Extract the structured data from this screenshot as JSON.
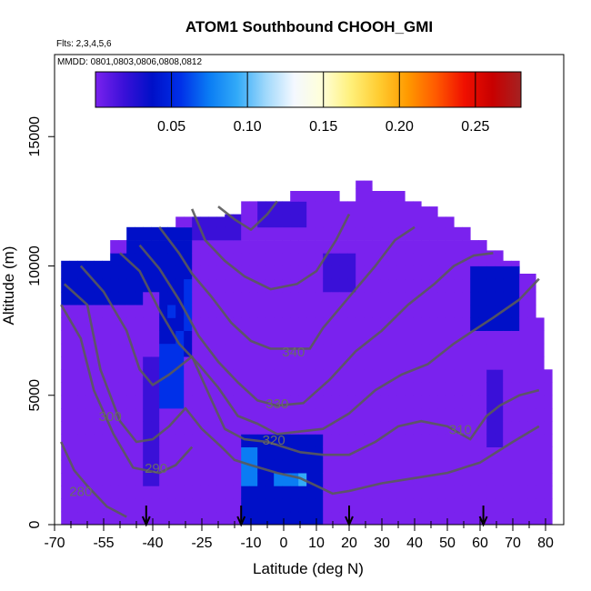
{
  "chart_data": {
    "type": "heatmap",
    "title": "ATOM1 Southbound CHOOH_GMI",
    "subtitle_flights": "Flts: 2,3,4,5,6",
    "subtitle_dates": "MMDD: 0801,0803,0806,0808,0812",
    "xlabel": "Latitude (deg N)",
    "ylabel": "Altitude (m)",
    "xlim": [
      -70,
      80
    ],
    "ylim": [
      0,
      16500
    ],
    "x_tick_labels": [
      "-70",
      "-55",
      "-40",
      "-25",
      "-10",
      "0",
      "10",
      "20",
      "30",
      "40",
      "50",
      "60",
      "70",
      "80"
    ],
    "x_tick_values": [
      -70,
      -55,
      -40,
      -25,
      -10,
      0,
      10,
      20,
      30,
      40,
      50,
      60,
      70,
      80
    ],
    "x_minor_ticks": [
      -65,
      -60,
      -50,
      -45,
      -35,
      -30,
      -20,
      -15,
      -5,
      5,
      15,
      25,
      35,
      45,
      55,
      65,
      75
    ],
    "y_tick_labels": [
      "0",
      "5000",
      "10000",
      "15000"
    ],
    "y_tick_values": [
      0,
      5000,
      10000,
      15000
    ],
    "colorbar": {
      "range": [
        0,
        0.28
      ],
      "tick_labels": [
        "0.05",
        "0.10",
        "0.15",
        "0.20",
        "0.25"
      ],
      "tick_values": [
        0.05,
        0.1,
        0.15,
        0.2,
        0.25
      ],
      "colors": [
        "#7a22ee",
        "#3a10d8",
        "#0010c8",
        "#0030e8",
        "#0a7cf4",
        "#32aaf8",
        "#9fd8fb",
        "#f4f8ff",
        "#ffffd8",
        "#fff07a",
        "#ffcc30",
        "#ff9a00",
        "#ff5a00",
        "#f01000",
        "#c80000",
        "#a52222"
      ]
    },
    "column_top_altitudes": [
      {
        "lat": -68,
        "top": 10200
      },
      {
        "lat": -62,
        "top": 10200
      },
      {
        "lat": -55,
        "top": 11000
      },
      {
        "lat": -50,
        "top": 11500
      },
      {
        "lat": -45,
        "top": 11500
      },
      {
        "lat": -40,
        "top": 11500
      },
      {
        "lat": -35,
        "top": 11900
      },
      {
        "lat": -25,
        "top": 11900
      },
      {
        "lat": -20,
        "top": 12000
      },
      {
        "lat": -15,
        "top": 12500
      },
      {
        "lat": -5,
        "top": 12500
      },
      {
        "lat": 0,
        "top": 12900
      },
      {
        "lat": 10,
        "top": 12900
      },
      {
        "lat": 15,
        "top": 12500
      },
      {
        "lat": 20,
        "top": 13300
      },
      {
        "lat": 25,
        "top": 12900
      },
      {
        "lat": 35,
        "top": 12500
      },
      {
        "lat": 40,
        "top": 12300
      },
      {
        "lat": 45,
        "top": 11900
      },
      {
        "lat": 50,
        "top": 11500
      },
      {
        "lat": 55,
        "top": 11000
      },
      {
        "lat": 60,
        "top": 10600
      },
      {
        "lat": 65,
        "top": 10200
      },
      {
        "lat": 70,
        "top": 9700
      },
      {
        "lat": 75,
        "top": 8000
      },
      {
        "lat": 78,
        "top": 6000
      }
    ],
    "background_value": 0.01,
    "patches": [
      {
        "lat0": -70,
        "lat1": -45,
        "alt0": 8500,
        "alt1": 10200,
        "value": 0.04
      },
      {
        "lat0": -50,
        "lat1": -30,
        "alt0": 9000,
        "alt1": 11500,
        "value": 0.04
      },
      {
        "lat0": -40,
        "lat1": -30,
        "alt0": 6500,
        "alt1": 9500,
        "value": 0.05
      },
      {
        "lat0": -38,
        "lat1": -32,
        "alt0": 4500,
        "alt1": 7000,
        "value": 0.06
      },
      {
        "lat0": -44,
        "lat1": -40,
        "alt0": 1500,
        "alt1": 6500,
        "value": 0.03
      },
      {
        "lat0": -30,
        "lat1": -15,
        "alt0": 11000,
        "alt1": 12000,
        "value": 0.03
      },
      {
        "lat0": -10,
        "lat1": 5,
        "alt0": 11500,
        "alt1": 12500,
        "value": 0.03
      },
      {
        "lat0": -15,
        "lat1": 10,
        "alt0": 0,
        "alt1": 3500,
        "value": 0.045
      },
      {
        "lat0": -14,
        "lat1": -8,
        "alt0": 1500,
        "alt1": 2700,
        "value": 0.08
      },
      {
        "lat0": -3,
        "lat1": 6,
        "alt0": 1500,
        "alt1": 2000,
        "value": 0.085
      },
      {
        "lat0": 10,
        "lat1": 20,
        "alt0": 9000,
        "alt1": 10500,
        "value": 0.03
      },
      {
        "lat0": 55,
        "lat1": 72,
        "alt0": 7500,
        "alt1": 10000,
        "value": 0.04
      },
      {
        "lat0": 60,
        "lat1": 66,
        "alt0": 3000,
        "alt1": 6000,
        "value": 0.03
      }
    ],
    "contours": [
      {
        "label": "280",
        "label_lat": -62,
        "label_alt": 1100,
        "points": [
          [
            -68,
            3200
          ],
          [
            -64,
            2100
          ],
          [
            -60,
            1500
          ],
          [
            -54,
            700
          ],
          [
            -48,
            300
          ]
        ]
      },
      {
        "label": "290",
        "label_lat": -39,
        "label_alt": 2000,
        "points": [
          [
            -68,
            8500
          ],
          [
            -62,
            7200
          ],
          [
            -58,
            5200
          ],
          [
            -52,
            3500
          ],
          [
            -46,
            2200
          ],
          [
            -38,
            2000
          ],
          [
            -33,
            2300
          ],
          [
            -28,
            3000
          ]
        ]
      },
      {
        "label": "300",
        "label_lat": -53,
        "label_alt": 4000,
        "points": [
          [
            -67,
            9300
          ],
          [
            -60,
            8500
          ],
          [
            -56,
            6000
          ],
          [
            -50,
            4000
          ],
          [
            -45,
            3200
          ],
          [
            -40,
            3300
          ],
          [
            -35,
            3800
          ],
          [
            -30,
            4500
          ],
          [
            -25,
            3700
          ],
          [
            -19,
            3000
          ],
          [
            -15,
            2500
          ],
          [
            -10,
            2300
          ],
          [
            -2,
            2000
          ],
          [
            5,
            1800
          ],
          [
            10,
            1500
          ],
          [
            15,
            1200
          ],
          [
            20,
            1300
          ],
          [
            30,
            1600
          ],
          [
            40,
            1800
          ],
          [
            50,
            2000
          ],
          [
            60,
            2400
          ],
          [
            70,
            3200
          ],
          [
            78,
            3800
          ]
        ]
      },
      {
        "label": "310",
        "label_lat": 54,
        "label_alt": 3500,
        "points": [
          [
            -62,
            10000
          ],
          [
            -55,
            9000
          ],
          [
            -48,
            7500
          ],
          [
            -44,
            6000
          ],
          [
            -40,
            5400
          ],
          [
            -35,
            5800
          ],
          [
            -28,
            6500
          ],
          [
            -22,
            4800
          ],
          [
            -18,
            3700
          ],
          [
            -12,
            3300
          ],
          [
            -5,
            3200
          ],
          [
            0,
            3000
          ],
          [
            5,
            2800
          ],
          [
            12,
            2700
          ],
          [
            20,
            2700
          ],
          [
            28,
            3200
          ],
          [
            35,
            3800
          ],
          [
            42,
            4000
          ],
          [
            50,
            3800
          ],
          [
            57,
            3300
          ],
          [
            62,
            4200
          ],
          [
            66,
            4600
          ],
          [
            72,
            5000
          ],
          [
            78,
            5200
          ]
        ]
      },
      {
        "label": "320",
        "label_lat": -3,
        "label_alt": 3100,
        "points": [
          [
            -50,
            10500
          ],
          [
            -44,
            9800
          ],
          [
            -38,
            8300
          ],
          [
            -32,
            7000
          ],
          [
            -26,
            6200
          ],
          [
            -20,
            5300
          ],
          [
            -14,
            4200
          ],
          [
            -8,
            3900
          ],
          [
            -2,
            3500
          ],
          [
            5,
            3600
          ],
          [
            12,
            3700
          ],
          [
            20,
            4300
          ],
          [
            28,
            5200
          ],
          [
            36,
            5800
          ],
          [
            44,
            6200
          ],
          [
            52,
            7000
          ],
          [
            58,
            7500
          ],
          [
            64,
            8000
          ],
          [
            72,
            8700
          ],
          [
            78,
            9500
          ]
        ]
      },
      {
        "label": "330",
        "label_lat": -2,
        "label_alt": 4500,
        "points": [
          [
            -44,
            10800
          ],
          [
            -38,
            9900
          ],
          [
            -32,
            8700
          ],
          [
            -26,
            7300
          ],
          [
            -20,
            6300
          ],
          [
            -14,
            5500
          ],
          [
            -8,
            4800
          ],
          [
            -2,
            4600
          ],
          [
            6,
            4700
          ],
          [
            14,
            5600
          ],
          [
            22,
            6700
          ],
          [
            30,
            7500
          ],
          [
            38,
            8500
          ],
          [
            46,
            9300
          ],
          [
            52,
            10000
          ],
          [
            58,
            10400
          ],
          [
            64,
            10500
          ]
        ]
      },
      {
        "label": "340",
        "label_lat": 3,
        "label_alt": 6500,
        "points": [
          [
            -38,
            11500
          ],
          [
            -32,
            10500
          ],
          [
            -28,
            9700
          ],
          [
            -22,
            8800
          ],
          [
            -16,
            7800
          ],
          [
            -10,
            7100
          ],
          [
            -4,
            6800
          ],
          [
            2,
            6800
          ],
          [
            8,
            6800
          ],
          [
            12,
            7600
          ],
          [
            20,
            8800
          ],
          [
            28,
            10000
          ],
          [
            34,
            11000
          ],
          [
            40,
            11500
          ]
        ]
      },
      {
        "label": "",
        "label_lat": 0,
        "label_alt": 0,
        "points": [
          [
            -28,
            12200
          ],
          [
            -24,
            11000
          ],
          [
            -18,
            10200
          ],
          [
            -12,
            9600
          ],
          [
            -4,
            9100
          ],
          [
            4,
            9300
          ],
          [
            10,
            9800
          ],
          [
            16,
            11000
          ],
          [
            20,
            12000
          ]
        ]
      },
      {
        "label": "",
        "label_lat": 0,
        "label_alt": 0,
        "points": [
          [
            -20,
            12300
          ],
          [
            -15,
            11800
          ],
          [
            -10,
            11400
          ],
          [
            -5,
            12000
          ],
          [
            -2,
            12500
          ]
        ]
      }
    ],
    "flight_markers_lat": [
      -42,
      -13,
      20,
      61
    ]
  }
}
